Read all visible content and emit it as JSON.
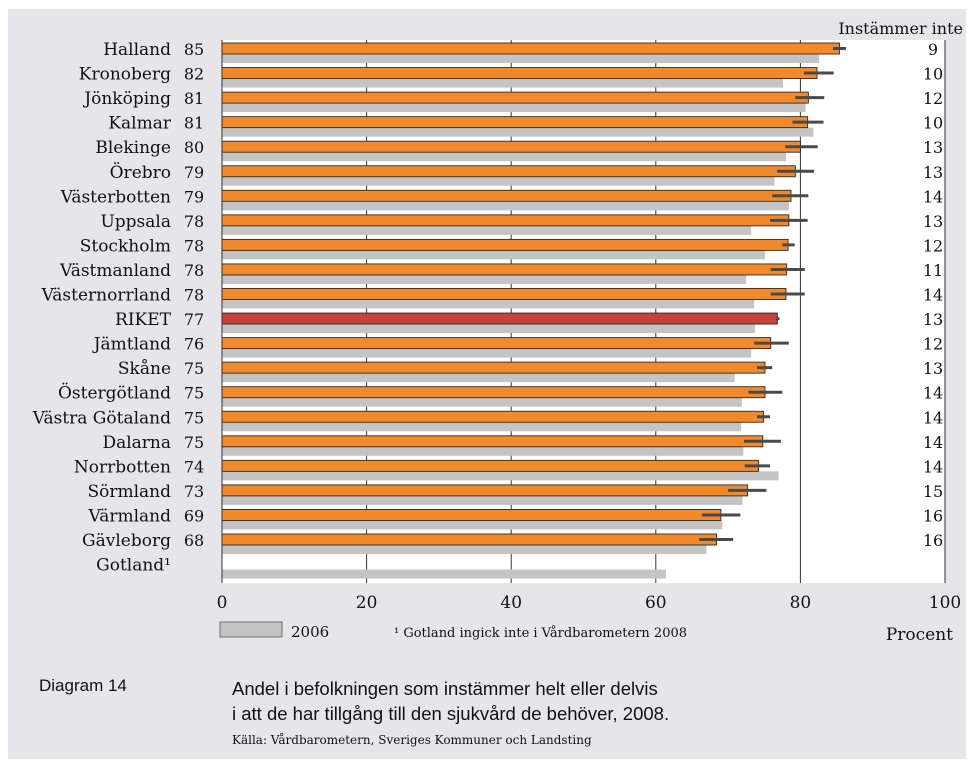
{
  "caption": {
    "label": "Diagram 14",
    "line1": "Andel i befolkningen som instämmer helt eller delvis",
    "line2": "i att de har tillgång till den sjukvård de behöver, 2008.",
    "source": "Källa: Vårdbarometern, Sveriges Kommuner och Landsting"
  },
  "chart_data": {
    "type": "bar",
    "orientation": "horizontal",
    "xlabel": "Procent",
    "xlim": [
      0,
      100
    ],
    "xticks": [
      "0",
      "20",
      "40",
      "60",
      "80",
      "100"
    ],
    "right_header": "Instämmer inte",
    "footnote": "¹ Gotland ingick inte i Vårdbarometern 2008",
    "legend": [
      "2006"
    ],
    "grid": true,
    "categories": [
      "Halland",
      "Kronoberg",
      "Jönköping",
      "Kalmar",
      "Blekinge",
      "Örebro",
      "Västerbotten",
      "Uppsala",
      "Stockholm",
      "Västmanland",
      "Västernorrland",
      "RIKET",
      "Jämtland",
      "Skåne",
      "Östergötland",
      "Västra Götaland",
      "Dalarna",
      "Norrbotten",
      "Sörmland",
      "Värmland",
      "Gävleborg",
      "Gotland¹"
    ],
    "value_labels": [
      "85",
      "82",
      "81",
      "81",
      "80",
      "79",
      "79",
      "78",
      "78",
      "78",
      "78",
      "77",
      "76",
      "75",
      "75",
      "75",
      "75",
      "74",
      "73",
      "69",
      "68",
      ""
    ],
    "disagree_labels": [
      "9",
      "10",
      "12",
      "10",
      "13",
      "13",
      "14",
      "13",
      "12",
      "11",
      "14",
      "13",
      "12",
      "13",
      "14",
      "14",
      "14",
      "14",
      "15",
      "16",
      "16",
      ""
    ],
    "series": [
      {
        "name": "2008",
        "color": "#f28a2c",
        "highlight_color": "#c9413a",
        "highlight_category": "RIKET",
        "values": [
          85.4,
          82.3,
          81.1,
          81.0,
          80.0,
          79.3,
          78.7,
          78.4,
          78.3,
          78.1,
          78.0,
          76.8,
          75.9,
          75.1,
          75.1,
          74.9,
          74.8,
          74.2,
          72.7,
          69.0,
          68.4,
          null
        ],
        "ci_low": [
          84.5,
          80.5,
          79.3,
          78.9,
          77.9,
          76.8,
          76.1,
          75.8,
          77.5,
          75.9,
          75.9,
          76.6,
          73.6,
          74.0,
          72.8,
          74.0,
          72.2,
          72.3,
          70.0,
          66.4,
          66.0,
          null
        ],
        "ci_high": [
          86.3,
          84.6,
          83.3,
          83.2,
          82.4,
          81.9,
          81.1,
          81.0,
          79.2,
          80.6,
          80.6,
          77.1,
          78.4,
          76.1,
          77.5,
          75.8,
          77.3,
          75.8,
          75.3,
          71.7,
          70.7,
          null
        ]
      },
      {
        "name": "2006",
        "color": "#c4c4c4",
        "values": [
          82.6,
          77.6,
          80.7,
          81.8,
          78.0,
          76.4,
          78.4,
          73.2,
          75.1,
          72.5,
          73.6,
          73.7,
          73.2,
          70.9,
          71.9,
          71.8,
          72.1,
          77.0,
          72.0,
          69.2,
          67.0,
          61.4
        ]
      }
    ]
  }
}
